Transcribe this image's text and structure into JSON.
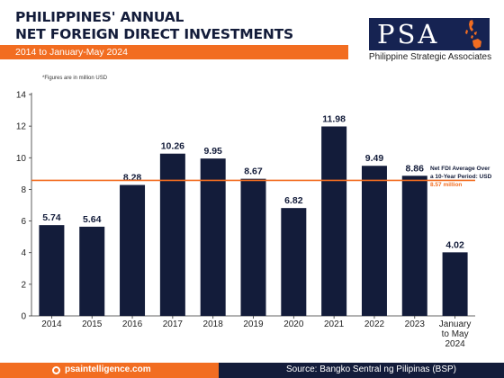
{
  "header": {
    "title_line1": "PHILIPPINES' ANNUAL",
    "title_line2": "NET FOREIGN DIRECT INVESTMENTS",
    "subtitle": "2014 to January-May 2024"
  },
  "logo": {
    "letters": "PSA",
    "name": "Philippine Strategic Associates",
    "icon": "philippines-map-icon"
  },
  "note": "*Figures are in million USD",
  "footer": {
    "website": "psaintelligence.com",
    "website_icon": "globe-icon",
    "source": "Source: Bangko Sentral ng Pilipinas (BSP)"
  },
  "colors": {
    "bar": "#131c3a",
    "accent": "#f26d21",
    "navy": "#162352"
  },
  "chart_data": {
    "type": "bar",
    "categories": [
      "2014",
      "2015",
      "2016",
      "2017",
      "2018",
      "2019",
      "2020",
      "2021",
      "2022",
      "2023",
      "January to May 2024"
    ],
    "category_label_lines": [
      [
        "2014"
      ],
      [
        "2015"
      ],
      [
        "2016"
      ],
      [
        "2017"
      ],
      [
        "2018"
      ],
      [
        "2019"
      ],
      [
        "2020"
      ],
      [
        "2021"
      ],
      [
        "2022"
      ],
      [
        "2023"
      ],
      [
        "January",
        "to May",
        "2024"
      ]
    ],
    "values": [
      5.74,
      5.64,
      8.28,
      10.26,
      9.95,
      8.67,
      6.82,
      11.98,
      9.49,
      8.86,
      4.02
    ],
    "value_labels": [
      "5.74",
      "5.64",
      "8.28",
      "10.26",
      "9.95",
      "8.67",
      "6.82",
      "11.98",
      "9.49",
      "8.86",
      "4.02"
    ],
    "ylim": [
      0,
      14
    ],
    "yticks": [
      0,
      2,
      4,
      6,
      8,
      10,
      12,
      14
    ],
    "grid": false,
    "reference_line": {
      "value": 8.57,
      "label_line1": "Net FDI Average Over",
      "label_line2": "a 10-Year Period: USD",
      "label_value": "8.57 million"
    }
  }
}
